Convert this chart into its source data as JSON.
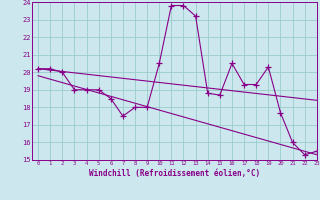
{
  "xlabel": "Windchill (Refroidissement éolien,°C)",
  "bg_color": "#cce8ee",
  "line_color": "#880088",
  "grid_color": "#99cccc",
  "ylim": [
    15,
    24
  ],
  "xlim": [
    -0.5,
    23
  ],
  "yticks": [
    15,
    16,
    17,
    18,
    19,
    20,
    21,
    22,
    23,
    24
  ],
  "xticks": [
    0,
    1,
    2,
    3,
    4,
    5,
    6,
    7,
    8,
    9,
    10,
    11,
    12,
    13,
    14,
    15,
    16,
    17,
    18,
    19,
    20,
    21,
    22,
    23
  ],
  "series1_x": [
    0,
    1,
    2,
    3,
    4,
    5,
    6,
    7,
    8,
    9,
    10,
    11,
    12,
    13,
    14,
    15,
    16,
    17,
    18,
    19,
    20,
    21,
    22,
    23
  ],
  "series1_y": [
    20.2,
    20.2,
    20.0,
    19.0,
    19.0,
    19.0,
    18.5,
    17.5,
    18.0,
    18.0,
    20.5,
    23.8,
    23.8,
    23.2,
    18.8,
    18.7,
    20.5,
    19.3,
    19.3,
    20.3,
    17.7,
    16.0,
    15.3,
    15.5
  ],
  "series2_x": [
    0,
    23
  ],
  "series2_y": [
    20.2,
    18.4
  ],
  "series3_x": [
    0,
    23
  ],
  "series3_y": [
    19.8,
    15.3
  ]
}
